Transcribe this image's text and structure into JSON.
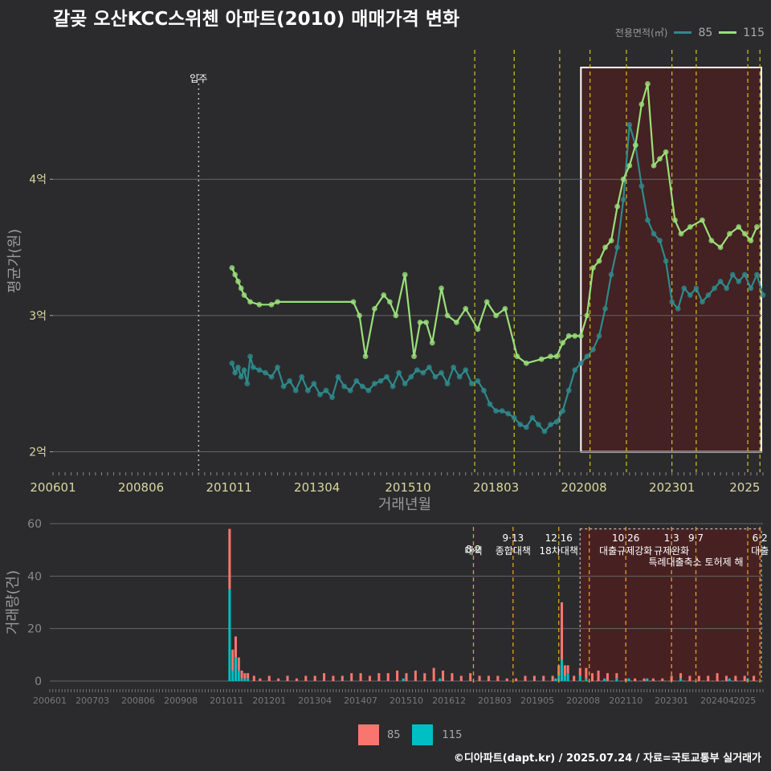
{
  "title": "갈곶 오산KCC스위첸 아파트(2010) 매매가격 변화",
  "footer": "©디아파트(dapt.kr) / 2025.07.24 / 자료=국토교통부 실거래가",
  "legend_top": {
    "title": "전용면적(㎡)",
    "items": [
      {
        "label": "85",
        "color": "#2e8a8c"
      },
      {
        "label": "115",
        "color": "#9ae07a"
      }
    ]
  },
  "legend_bottom": {
    "items": [
      {
        "label": "85",
        "color": "#f8766d"
      },
      {
        "label": "115",
        "color": "#00bfc4"
      }
    ]
  },
  "chart_data": [
    {
      "type": "line",
      "ylabel": "평균가(원)",
      "xlabel": "거래년월",
      "x_range": [
        "2006-01",
        "2025-07"
      ],
      "ylim": [
        1.85,
        4.95
      ],
      "y_ticks": [
        {
          "v": 2,
          "label": "2억"
        },
        {
          "v": 3,
          "label": "3억"
        },
        {
          "v": 4,
          "label": "4억"
        }
      ],
      "x_ticks": [
        "200601",
        "200806",
        "201011",
        "201304",
        "201510",
        "201803",
        "202008",
        "202301",
        "2025"
      ],
      "move_in": {
        "x": "2010-01",
        "label": "입주"
      },
      "policy_lines": [
        "2017-08",
        "2018-09",
        "2019-12",
        "2020-10",
        "2021-10",
        "2023-01",
        "2023-09",
        "2025-02",
        "2025-06"
      ],
      "highlight": {
        "from": "2020-07",
        "to": "2025-07",
        "ymin": 2.0,
        "ymax": 4.82
      },
      "series": [
        {
          "name": "85",
          "x": [
            "2010-12",
            "2011-01",
            "2011-02",
            "2011-03",
            "2011-04",
            "2011-05",
            "2011-06",
            "2011-07",
            "2011-09",
            "2011-11",
            "2012-01",
            "2012-03",
            "2012-05",
            "2012-07",
            "2012-09",
            "2012-11",
            "2013-01",
            "2013-03",
            "2013-05",
            "2013-07",
            "2013-09",
            "2013-11",
            "2014-01",
            "2014-03",
            "2014-05",
            "2014-07",
            "2014-09",
            "2014-11",
            "2015-01",
            "2015-03",
            "2015-05",
            "2015-07",
            "2015-09",
            "2015-11",
            "2016-01",
            "2016-03",
            "2016-05",
            "2016-07",
            "2016-09",
            "2016-11",
            "2017-01",
            "2017-03",
            "2017-05",
            "2017-07",
            "2017-09",
            "2017-11",
            "2018-01",
            "2018-03",
            "2018-05",
            "2018-07",
            "2018-09",
            "2018-11",
            "2019-01",
            "2019-03",
            "2019-05",
            "2019-07",
            "2019-09",
            "2019-11",
            "2020-01",
            "2020-03",
            "2020-05",
            "2020-07",
            "2020-09",
            "2020-11",
            "2021-01",
            "2021-03",
            "2021-05",
            "2021-07",
            "2021-09",
            "2021-11",
            "2022-01",
            "2022-03",
            "2022-05",
            "2022-07",
            "2022-09",
            "2022-11",
            "2023-01",
            "2023-03",
            "2023-05",
            "2023-07",
            "2023-09",
            "2023-11",
            "2024-01",
            "2024-03",
            "2024-05",
            "2024-07",
            "2024-09",
            "2024-11",
            "2025-01",
            "2025-03",
            "2025-05",
            "2025-07"
          ],
          "values": [
            2.65,
            2.58,
            2.62,
            2.55,
            2.6,
            2.5,
            2.7,
            2.62,
            2.6,
            2.58,
            2.55,
            2.62,
            2.48,
            2.52,
            2.45,
            2.55,
            2.45,
            2.5,
            2.42,
            2.45,
            2.4,
            2.55,
            2.48,
            2.45,
            2.52,
            2.48,
            2.45,
            2.5,
            2.52,
            2.55,
            2.48,
            2.58,
            2.5,
            2.55,
            2.6,
            2.58,
            2.62,
            2.55,
            2.58,
            2.5,
            2.62,
            2.55,
            2.6,
            2.5,
            2.52,
            2.45,
            2.35,
            2.3,
            2.3,
            2.28,
            2.25,
            2.2,
            2.18,
            2.25,
            2.2,
            2.15,
            2.2,
            2.22,
            2.3,
            2.45,
            2.6,
            2.65,
            2.7,
            2.75,
            2.85,
            3.05,
            3.3,
            3.5,
            3.85,
            4.4,
            4.25,
            3.95,
            3.7,
            3.6,
            3.55,
            3.4,
            3.1,
            3.05,
            3.2,
            3.15,
            3.2,
            3.1,
            3.15,
            3.2,
            3.25,
            3.2,
            3.3,
            3.25,
            3.3,
            3.2,
            3.3,
            3.15
          ]
        },
        {
          "name": "115",
          "x": [
            "2010-12",
            "2011-01",
            "2011-02",
            "2011-03",
            "2011-04",
            "2011-06",
            "2011-09",
            "2012-01",
            "2012-03",
            "2014-04",
            "2014-06",
            "2014-08",
            "2014-11",
            "2015-02",
            "2015-04",
            "2015-06",
            "2015-09",
            "2015-12",
            "2016-02",
            "2016-04",
            "2016-06",
            "2016-09",
            "2016-11",
            "2017-02",
            "2017-05",
            "2017-09",
            "2017-12",
            "2018-03",
            "2018-06",
            "2018-10",
            "2019-01",
            "2019-06",
            "2019-09",
            "2019-11",
            "2020-01",
            "2020-03",
            "2020-05",
            "2020-07",
            "2020-09",
            "2020-11",
            "2021-01",
            "2021-03",
            "2021-05",
            "2021-07",
            "2021-09",
            "2021-11",
            "2022-01",
            "2022-03",
            "2022-05",
            "2022-07",
            "2022-09",
            "2022-11",
            "2023-02",
            "2023-04",
            "2023-07",
            "2023-11",
            "2024-02",
            "2024-05",
            "2024-08",
            "2024-11",
            "2025-01",
            "2025-03",
            "2025-05"
          ],
          "values": [
            3.35,
            3.3,
            3.25,
            3.2,
            3.15,
            3.1,
            3.08,
            3.08,
            3.1,
            3.1,
            3.0,
            2.7,
            3.05,
            3.15,
            3.1,
            3.0,
            3.3,
            2.7,
            2.95,
            2.95,
            2.8,
            3.2,
            3.0,
            2.95,
            3.05,
            2.9,
            3.1,
            3.0,
            3.05,
            2.7,
            2.65,
            2.68,
            2.7,
            2.7,
            2.8,
            2.85,
            2.85,
            2.85,
            3.0,
            3.35,
            3.4,
            3.5,
            3.55,
            3.8,
            4.0,
            4.1,
            4.25,
            4.55,
            4.7,
            4.1,
            4.15,
            4.2,
            3.7,
            3.6,
            3.65,
            3.7,
            3.55,
            3.5,
            3.6,
            3.65,
            3.6,
            3.55,
            3.65
          ]
        }
      ]
    },
    {
      "type": "bar",
      "stacked": true,
      "ylabel": "거래량(건)",
      "ylim": [
        0,
        60
      ],
      "y_ticks": [
        0,
        20,
        40,
        60
      ],
      "x_range": [
        "2006-01",
        "2025-07"
      ],
      "x_ticks": [
        "200601",
        "200703",
        "200806",
        "200908",
        "201011",
        "201201",
        "201304",
        "201407",
        "201510",
        "201612",
        "201803",
        "201905",
        "202008",
        "202110",
        "202301",
        "202404",
        "2025"
      ],
      "highlight": {
        "from": "2020-07",
        "to": "2025-07",
        "ymax": 58
      },
      "policies": [
        {
          "x": "2017-08",
          "date": "8·2",
          "label": "대책"
        },
        {
          "x": "2018-09",
          "date": "9·13",
          "label": "종합대책"
        },
        {
          "x": "2019-12",
          "date": "12·16",
          "label": "18차대책"
        },
        {
          "x": "2020-10",
          "date": "",
          "label": ""
        },
        {
          "x": "2021-10",
          "date": "10·26",
          "label": "대출규제강화"
        },
        {
          "x": "2023-01",
          "date": "1·3",
          "label": "규제완화"
        },
        {
          "x": "2023-09",
          "date": "9·7",
          "label": "특례대출축소 토허제 해"
        },
        {
          "x": "2025-02",
          "date": "",
          "label": ""
        },
        {
          "x": "2025-06",
          "date": "6·2",
          "label": "대출"
        }
      ],
      "series": [
        {
          "name": "85",
          "x": [
            "2010-12",
            "2011-01",
            "2011-02",
            "2011-03",
            "2011-04",
            "2011-05",
            "2011-06",
            "2011-08",
            "2011-10",
            "2012-01",
            "2012-04",
            "2012-07",
            "2012-10",
            "2013-01",
            "2013-04",
            "2013-07",
            "2013-10",
            "2014-01",
            "2014-04",
            "2014-07",
            "2014-10",
            "2015-01",
            "2015-04",
            "2015-07",
            "2015-10",
            "2016-01",
            "2016-04",
            "2016-07",
            "2016-10",
            "2017-01",
            "2017-04",
            "2017-07",
            "2017-10",
            "2018-01",
            "2018-04",
            "2018-07",
            "2018-10",
            "2019-01",
            "2019-04",
            "2019-07",
            "2019-10",
            "2019-12",
            "2020-01",
            "2020-02",
            "2020-03",
            "2020-05",
            "2020-07",
            "2020-09",
            "2020-11",
            "2021-01",
            "2021-04",
            "2021-07",
            "2021-10",
            "2022-01",
            "2022-04",
            "2022-07",
            "2022-10",
            "2023-01",
            "2023-04",
            "2023-07",
            "2023-10",
            "2024-01",
            "2024-04",
            "2024-07",
            "2024-10",
            "2025-01",
            "2025-04"
          ],
          "values": [
            23,
            8,
            8,
            5,
            3,
            2,
            2,
            2,
            1,
            2,
            1,
            2,
            1,
            2,
            2,
            3,
            2,
            2,
            3,
            3,
            2,
            3,
            3,
            4,
            3,
            4,
            3,
            5,
            4,
            3,
            2,
            3,
            2,
            2,
            2,
            1,
            1,
            2,
            2,
            2,
            2,
            4,
            22,
            4,
            3,
            2,
            3,
            4,
            3,
            4,
            3,
            2,
            1,
            1,
            1,
            1,
            1,
            2,
            2,
            2,
            2,
            2,
            3,
            2,
            2,
            2,
            2
          ]
        },
        {
          "name": "115",
          "x": [
            "2010-12",
            "2011-01",
            "2011-02",
            "2011-03",
            "2011-04",
            "2011-05",
            "2011-06",
            "2015-09",
            "2016-09",
            "2019-11",
            "2019-12",
            "2020-01",
            "2020-02",
            "2020-03",
            "2020-07",
            "2020-09",
            "2021-03",
            "2021-07",
            "2021-11",
            "2022-05",
            "2023-04",
            "2024-08",
            "2025-02"
          ],
          "values": [
            35,
            4,
            9,
            4,
            1,
            1,
            1,
            1,
            1,
            1,
            2,
            8,
            2,
            3,
            2,
            1,
            1,
            1,
            1,
            1,
            1,
            1,
            1
          ]
        }
      ]
    }
  ]
}
